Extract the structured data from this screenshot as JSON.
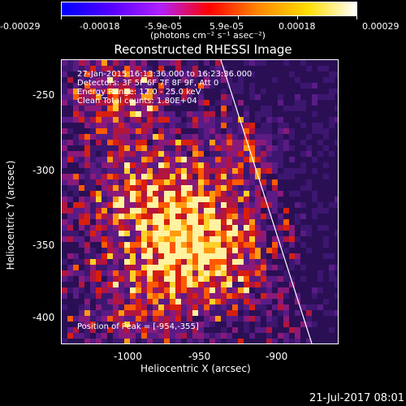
{
  "colorbar": {
    "tick_labels": [
      "-0.00029",
      "-0.00018",
      "-5.9e-05",
      "5.9e-05",
      "0.00018",
      "0.00029"
    ],
    "unit_label": "(photons cm⁻² s⁻¹ asec⁻²)",
    "colors": [
      "#0000ff",
      "#5500ff",
      "#b020ff",
      "#ff0000",
      "#ff8800",
      "#ffdd00",
      "#ffffff"
    ]
  },
  "title": "Reconstructed RHESSI Image",
  "info": {
    "line1": "27-Jan-2015 16:13:36.000 to 16:23:36.000",
    "line2": "Detectors: 3F 5F 6F 7F 8F 9F, Att 0",
    "line3": "Energy Range: 12.0 - 25.0 keV",
    "line4": "Clean     Total counts: 1.80E+04",
    "peak": "Position of Peak = [-954,-355]"
  },
  "axes": {
    "xlabel": "Heliocentric X (arcsec)",
    "ylabel": "Heliocentric Y (arcsec)",
    "x_ticks": [
      "-1000",
      "-950",
      "-900"
    ],
    "y_ticks": [
      "-250",
      "-300",
      "-350",
      "-400"
    ]
  },
  "timestamp": "21-Jul-2017 08:01",
  "colors": {
    "background": "#000000",
    "limb_line": "#ffffff"
  }
}
